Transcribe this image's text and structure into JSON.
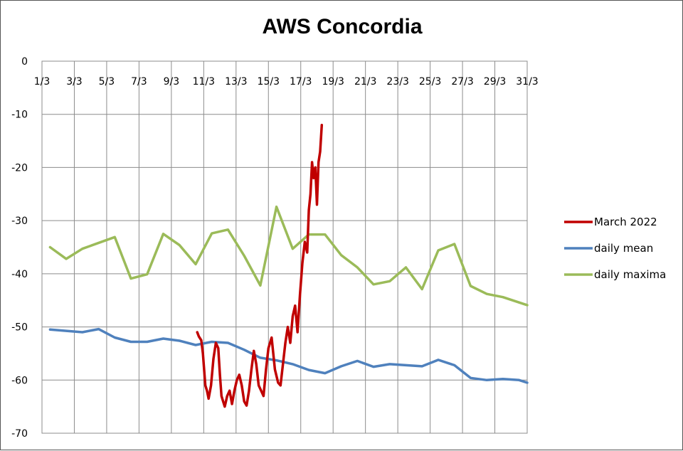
{
  "chart_data": {
    "type": "line",
    "title": "AWS Concordia",
    "xlabel": "",
    "ylabel": "",
    "xlim": [
      1,
      31
    ],
    "ylim": [
      -70,
      0
    ],
    "x_ticks": [
      "1/3",
      "3/3",
      "5/3",
      "7/3",
      "9/3",
      "11/3",
      "13/3",
      "15/3",
      "17/3",
      "19/3",
      "21/3",
      "23/3",
      "25/3",
      "27/3",
      "29/3",
      "31/3"
    ],
    "y_ticks": [
      0,
      -10,
      -20,
      -30,
      -40,
      -50,
      -60,
      -70
    ],
    "x_tick_labels_position": "top",
    "grid": true,
    "legend": "right",
    "series": [
      {
        "name": "March 2022",
        "color": "#c00000",
        "x": [
          10.6,
          10.7,
          10.85,
          10.95,
          11.1,
          11.2,
          11.3,
          11.45,
          11.6,
          11.75,
          11.9,
          12.0,
          12.1,
          12.2,
          12.3,
          12.45,
          12.6,
          12.75,
          12.9,
          13.05,
          13.2,
          13.35,
          13.5,
          13.65,
          13.8,
          13.95,
          14.1,
          14.25,
          14.4,
          14.55,
          14.7,
          14.85,
          15.0,
          15.2,
          15.4,
          15.6,
          15.75,
          15.9,
          16.05,
          16.2,
          16.35,
          16.5,
          16.65,
          16.8,
          16.95,
          17.1,
          17.25,
          17.4,
          17.5,
          17.6,
          17.7,
          17.8,
          17.9,
          18.0,
          18.1,
          18.2,
          18.3
        ],
        "y": [
          -51,
          -51.8,
          -52.5,
          -55,
          -61,
          -62,
          -63.5,
          -61,
          -56,
          -53,
          -54,
          -59,
          -63,
          -64,
          -65,
          -63,
          -62,
          -64.5,
          -62,
          -60,
          -59,
          -61,
          -64,
          -64.8,
          -62,
          -58,
          -54.5,
          -57,
          -61,
          -62,
          -63,
          -58,
          -54,
          -52,
          -58,
          -60.5,
          -61,
          -57,
          -53,
          -50,
          -53,
          -48,
          -46,
          -51,
          -44,
          -38,
          -34,
          -36,
          -28,
          -25,
          -19,
          -22,
          -20,
          -27,
          -19,
          -17,
          -12
        ]
      },
      {
        "name": "daily mean",
        "color": "#4f81bd",
        "x": [
          1.5,
          3.5,
          4.5,
          5.5,
          6.5,
          7.5,
          8.5,
          9.5,
          10.5,
          11.5,
          12.5,
          13.5,
          14.5,
          15.5,
          16.5,
          17.5,
          18.5,
          19.5,
          20.5,
          21.5,
          22.5,
          23.5,
          24.5,
          25.5,
          26.5,
          27.5,
          28.5,
          29.5,
          30.5,
          31.0
        ],
        "y": [
          -50.5,
          -51,
          -50.4,
          -52,
          -52.8,
          -52.8,
          -52.2,
          -52.6,
          -53.4,
          -52.8,
          -53,
          -54.3,
          -55.8,
          -56.3,
          -57,
          -58.1,
          -58.7,
          -57.4,
          -56.4,
          -57.5,
          -57,
          -57.2,
          -57.4,
          -56.2,
          -57.2,
          -59.6,
          -60,
          -59.8,
          -60,
          -60.5
        ]
      },
      {
        "name": "daily maxima",
        "color": "#9bbb59",
        "x": [
          1.5,
          2.5,
          3.5,
          5.5,
          6.5,
          7.5,
          8.5,
          9.5,
          10.5,
          11.5,
          12.5,
          13.5,
          14.5,
          15.5,
          16.5,
          17.5,
          18.5,
          19.5,
          20.5,
          21.5,
          22.5,
          23.5,
          24.5,
          25.5,
          26.5,
          27.5,
          28.5,
          29.5,
          30.5,
          31.0
        ],
        "y": [
          -35,
          -37.2,
          -35.3,
          -33.1,
          -40.9,
          -40.1,
          -32.5,
          -34.6,
          -38.2,
          -32.4,
          -31.7,
          -36.6,
          -42.2,
          -27.4,
          -35.3,
          -32.6,
          -32.6,
          -36.5,
          -38.8,
          -42,
          -41.4,
          -38.8,
          -42.9,
          -35.6,
          -34.4,
          -42.3,
          -43.8,
          -44.4,
          -45.4,
          -45.9
        ]
      }
    ]
  }
}
